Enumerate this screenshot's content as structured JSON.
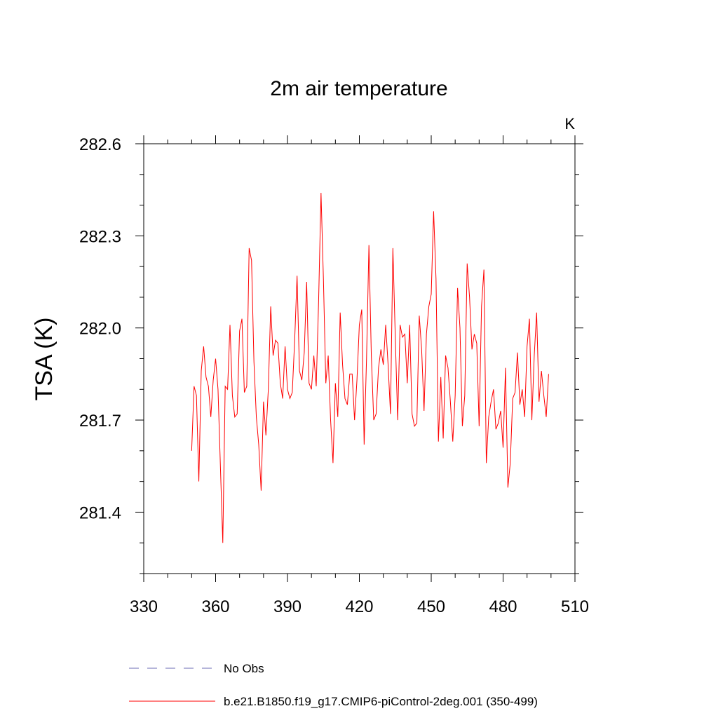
{
  "chart_data": {
    "type": "line",
    "title": "2m air temperature",
    "xlabel": "",
    "ylabel": "TSA  (K)",
    "units": "K",
    "xlim": [
      330,
      510
    ],
    "ylim": [
      281.2,
      282.6
    ],
    "xticks": [
      330,
      360,
      390,
      420,
      450,
      480,
      510
    ],
    "yticks": [
      281.4,
      281.7,
      282.0,
      282.3,
      282.6
    ],
    "ytick_labels": [
      "281.4",
      "281.7",
      "282.0",
      "282.3",
      "282.6"
    ],
    "grid": false,
    "legend_position": "bottom",
    "series": [
      {
        "name": "No Obs",
        "color": "#6b6bb5",
        "style": "dashed",
        "x": [],
        "values": []
      },
      {
        "name": "b.e21.B1850.f19_g17.CMIP6-piControl-2deg.001 (350-499)",
        "color": "#ff0000",
        "style": "solid",
        "x": [
          350,
          351,
          352,
          353,
          354,
          355,
          356,
          357,
          358,
          359,
          360,
          361,
          362,
          363,
          364,
          365,
          366,
          367,
          368,
          369,
          370,
          371,
          372,
          373,
          374,
          375,
          376,
          377,
          378,
          379,
          380,
          381,
          382,
          383,
          384,
          385,
          386,
          387,
          388,
          389,
          390,
          391,
          392,
          393,
          394,
          395,
          396,
          397,
          398,
          399,
          400,
          401,
          402,
          403,
          404,
          405,
          406,
          407,
          408,
          409,
          410,
          411,
          412,
          413,
          414,
          415,
          416,
          417,
          418,
          419,
          420,
          421,
          422,
          423,
          424,
          425,
          426,
          427,
          428,
          429,
          430,
          431,
          432,
          433,
          434,
          435,
          436,
          437,
          438,
          439,
          440,
          441,
          442,
          443,
          444,
          445,
          446,
          447,
          448,
          449,
          450,
          451,
          452,
          453,
          454,
          455,
          456,
          457,
          458,
          459,
          460,
          461,
          462,
          463,
          464,
          465,
          466,
          467,
          468,
          469,
          470,
          471,
          472,
          473,
          474,
          475,
          476,
          477,
          478,
          479,
          480,
          481,
          482,
          483,
          484,
          485,
          486,
          487,
          488,
          489,
          490,
          491,
          492,
          493,
          494,
          495,
          496,
          497,
          498,
          499
        ],
        "values": [
          281.6,
          281.81,
          281.78,
          281.5,
          281.86,
          281.94,
          281.84,
          281.81,
          281.71,
          281.83,
          281.9,
          281.8,
          281.55,
          281.3,
          281.81,
          281.8,
          282.01,
          281.78,
          281.71,
          281.72,
          281.99,
          282.03,
          281.79,
          281.81,
          282.26,
          282.22,
          281.89,
          281.71,
          281.62,
          281.47,
          281.76,
          281.65,
          281.8,
          282.07,
          281.91,
          281.96,
          281.95,
          281.82,
          281.77,
          281.94,
          281.8,
          281.77,
          281.79,
          281.96,
          282.17,
          281.86,
          281.83,
          281.92,
          282.15,
          281.82,
          281.8,
          281.91,
          281.81,
          282.09,
          282.44,
          282.16,
          281.82,
          281.91,
          281.7,
          281.56,
          281.82,
          281.71,
          282.05,
          281.88,
          281.77,
          281.75,
          281.85,
          281.85,
          281.7,
          281.83,
          282.01,
          282.06,
          281.62,
          281.9,
          282.27,
          281.91,
          281.7,
          281.72,
          281.87,
          281.93,
          281.88,
          282.01,
          281.88,
          281.72,
          282.26,
          281.97,
          281.7,
          282.01,
          281.97,
          281.98,
          281.82,
          282.01,
          281.72,
          281.68,
          281.69,
          282.04,
          281.93,
          281.73,
          281.98,
          282.07,
          282.11,
          282.38,
          282.16,
          281.63,
          281.84,
          281.64,
          281.91,
          281.87,
          281.76,
          281.63,
          281.78,
          282.13,
          282.0,
          281.68,
          281.78,
          282.21,
          282.1,
          281.93,
          281.98,
          281.95,
          281.68,
          282.07,
          282.19,
          281.56,
          281.71,
          281.76,
          281.8,
          281.67,
          281.69,
          281.73,
          281.61,
          281.87,
          281.48,
          281.56,
          281.77,
          281.79,
          281.92,
          281.75,
          281.8,
          281.71,
          281.94,
          282.03,
          281.7,
          281.91,
          282.05,
          281.76,
          281.86,
          281.78,
          281.71,
          281.85
        ]
      }
    ]
  }
}
